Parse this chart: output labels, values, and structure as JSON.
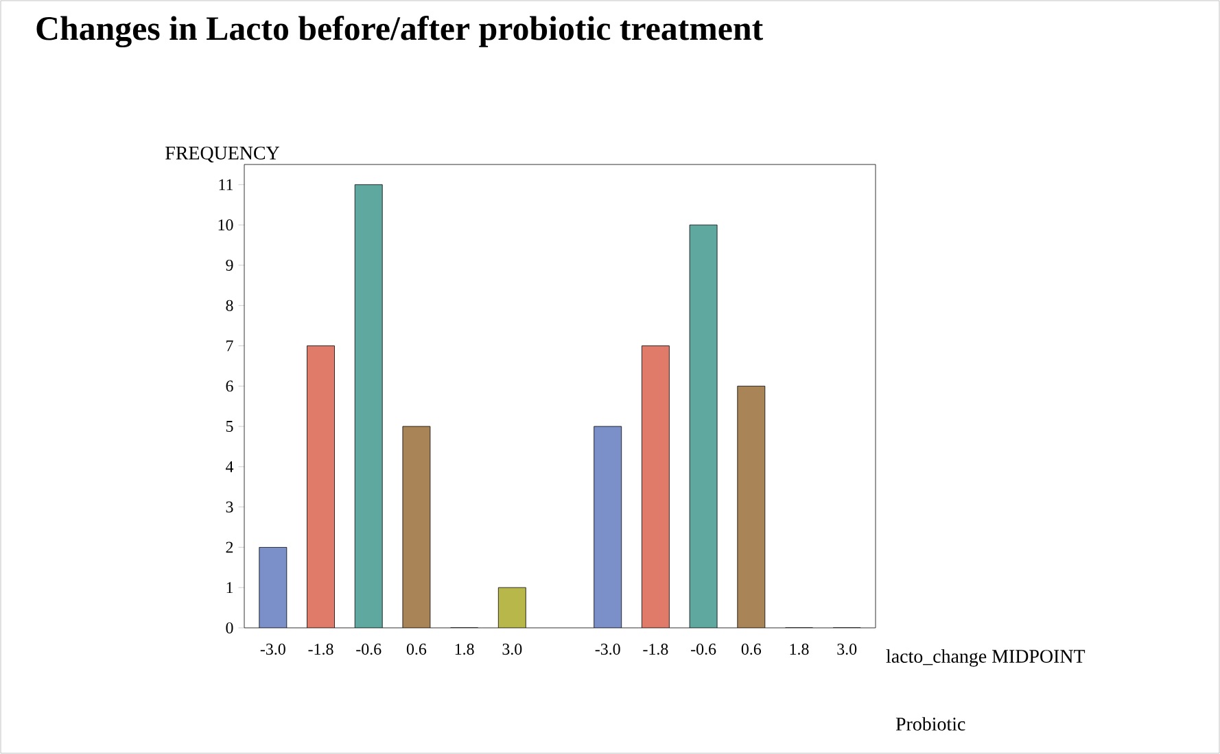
{
  "chart_data": {
    "type": "bar",
    "title": "Changes in Lacto before/after probiotic treatment",
    "xlabel": "lacto_change MIDPOINT",
    "ylabel": "FREQUENCY",
    "categories": [
      "-3.0",
      "-1.8",
      "-0.6",
      "0.6",
      "1.8",
      "3.0",
      "-3.0",
      "-1.8",
      "-0.6",
      "0.6",
      "1.8",
      "3.0"
    ],
    "values": [
      2,
      7,
      11,
      5,
      0,
      1,
      5,
      7,
      10,
      6,
      0,
      0
    ],
    "colors": [
      "#7b8fc8",
      "#e07b6a",
      "#5fa8a0",
      "#a88456",
      "#b8b84a",
      "#b8b84a",
      "#7b8fc8",
      "#e07b6a",
      "#5fa8a0",
      "#a88456",
      "#b8b84a",
      "#b8b84a"
    ],
    "ylim": [
      0,
      11.5
    ],
    "yticks": [
      0,
      1,
      2,
      3,
      4,
      5,
      6,
      7,
      8,
      9,
      10,
      11
    ],
    "grid": false,
    "annotations": [
      "Probiotic"
    ]
  }
}
